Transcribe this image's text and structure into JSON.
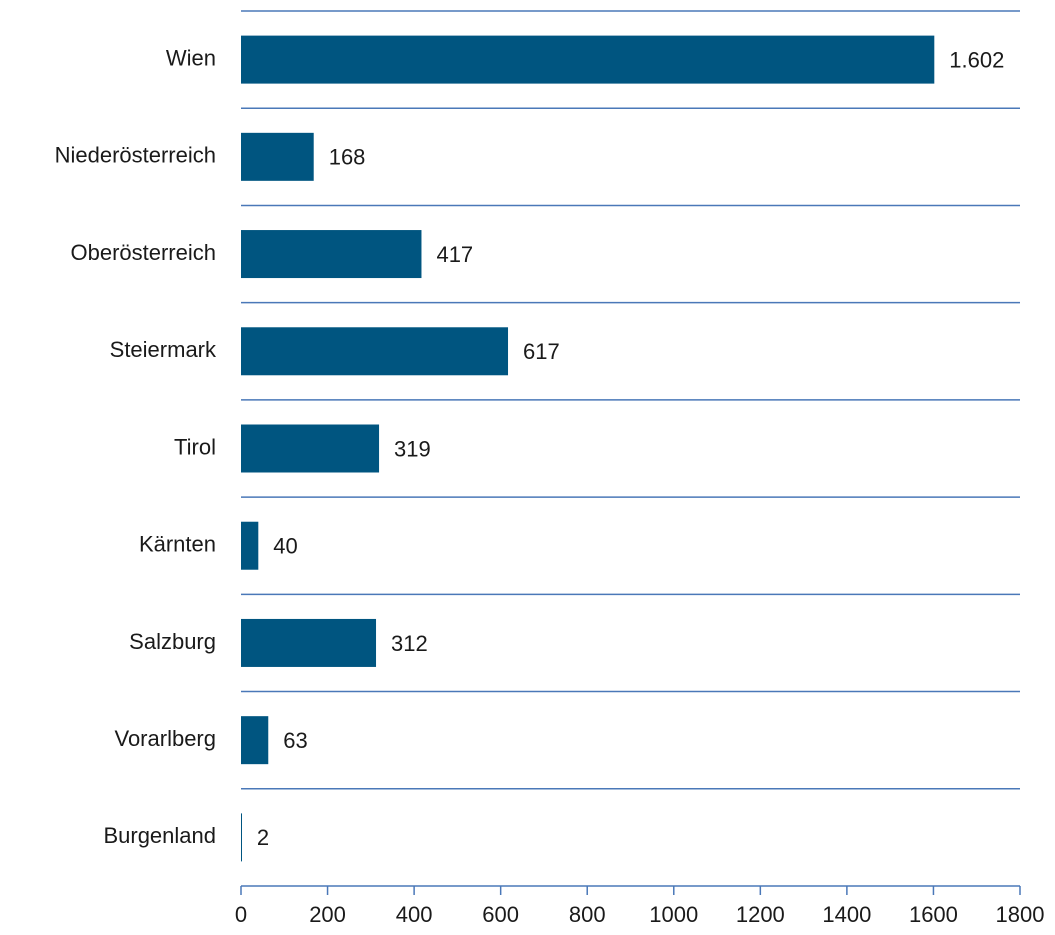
{
  "chart_data": {
    "type": "bar",
    "orientation": "horizontal",
    "categories": [
      "Wien",
      "Niederösterreich",
      "Oberösterreich",
      "Steiermark",
      "Tirol",
      "Kärnten",
      "Salzburg",
      "Vorarlberg",
      "Burgenland"
    ],
    "values": [
      1602,
      168,
      417,
      617,
      319,
      40,
      312,
      63,
      2
    ],
    "value_labels": [
      "1.602",
      "168",
      "417",
      "617",
      "319",
      "40",
      "312",
      "63",
      "2"
    ],
    "color": "#005580",
    "xlim": [
      0,
      1800
    ],
    "xticks": [
      0,
      200,
      400,
      600,
      800,
      1000,
      1200,
      1400,
      1600,
      1800
    ],
    "grid": false
  }
}
